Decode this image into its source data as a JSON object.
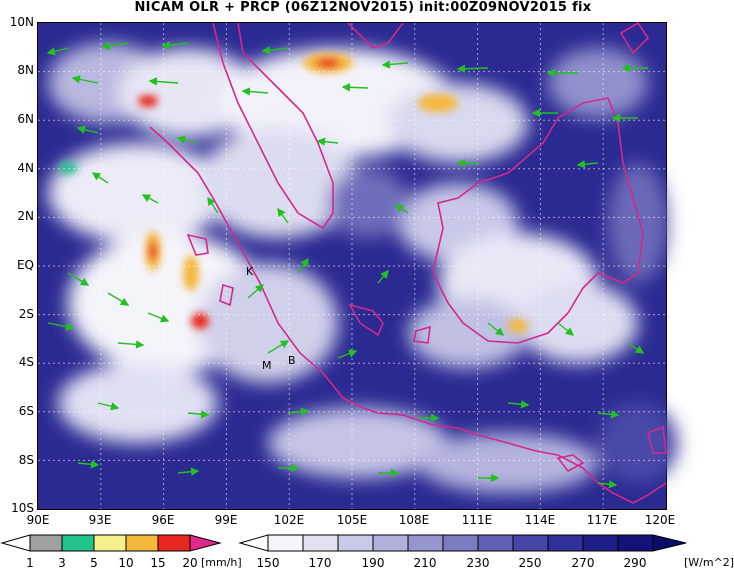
{
  "title": "NICAM OLR + PRCP (06Z12NOV2015) init:00Z09NOV2015 fix",
  "axes": {
    "lat_labels": [
      "10N",
      "8N",
      "6N",
      "4N",
      "2N",
      "EQ",
      "2S",
      "4S",
      "6S",
      "8S",
      "10S"
    ],
    "lon_labels": [
      "90E",
      "93E",
      "96E",
      "99E",
      "102E",
      "105E",
      "108E",
      "111E",
      "114E",
      "117E",
      "120E"
    ]
  },
  "place_markers": [
    "K",
    "B",
    "M"
  ],
  "precip_scale": {
    "unit": "[mm/h]",
    "ticks": [
      "1",
      "3",
      "5",
      "10",
      "15",
      "20"
    ],
    "colors": [
      "#a0a0a0",
      "#22c38a",
      "#f5f08c",
      "#f5b83c",
      "#e8281e",
      "#e0288c"
    ]
  },
  "olr_scale": {
    "unit": "[W/m^2]",
    "ticks": [
      "150",
      "170",
      "190",
      "210",
      "230",
      "250",
      "270",
      "290"
    ],
    "colors": [
      "#f4f4fb",
      "#e1e1f2",
      "#c9c9e8",
      "#b0b0dc",
      "#9696cf",
      "#7c7cc3",
      "#6161b6",
      "#4646a6",
      "#30309a",
      "#1e1e88",
      "#141478"
    ]
  },
  "colors": {
    "coastline": "#d4288c",
    "wind_arrow": "#22c022",
    "cloud": "#ffffff",
    "clear_sky": "#1e1e8c"
  }
}
